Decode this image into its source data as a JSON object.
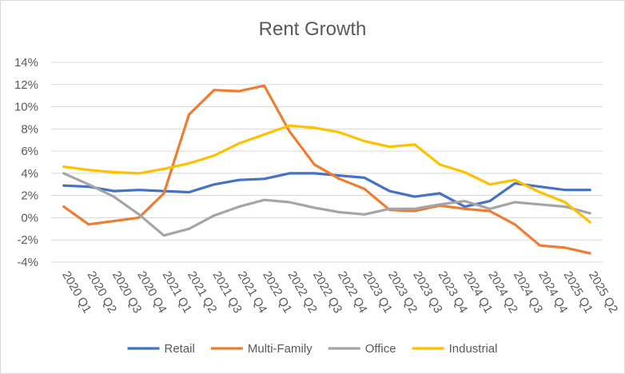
{
  "chart_data": {
    "type": "line",
    "title": "Rent Growth",
    "xlabel": "",
    "ylabel": "",
    "ylim": [
      -0.04,
      0.14
    ],
    "yticks": [
      "14%",
      "12%",
      "10%",
      "8%",
      "6%",
      "4%",
      "2%",
      "0%",
      "-2%",
      "-4%"
    ],
    "categories": [
      "2020 Q1",
      "2020 Q2",
      "2020 Q3",
      "2020 Q4",
      "2021 Q1",
      "2021 Q2",
      "2021 Q3",
      "2021 Q4",
      "2022 Q1",
      "2022 Q2",
      "2022 Q3",
      "2022 Q4",
      "2023 Q1",
      "2023 Q2",
      "2023 Q3",
      "2023 Q4",
      "2024 Q1",
      "2024 Q2",
      "2024 Q3",
      "2024 Q4",
      "2025 Q1",
      "2025 Q2"
    ],
    "grid": true,
    "legend": "bottom",
    "series": [
      {
        "name": "Retail",
        "color": "#4472C4",
        "values": [
          0.029,
          0.028,
          0.024,
          0.025,
          0.024,
          0.023,
          0.03,
          0.034,
          0.035,
          0.04,
          0.04,
          0.038,
          0.036,
          0.024,
          0.019,
          0.022,
          0.01,
          0.015,
          0.031,
          0.028,
          0.025,
          0.025
        ]
      },
      {
        "name": "Multi-Family",
        "color": "#ED7D31",
        "values": [
          0.01,
          -0.006,
          -0.003,
          0.0,
          0.022,
          0.093,
          0.115,
          0.114,
          0.119,
          0.078,
          0.048,
          0.035,
          0.026,
          0.007,
          0.006,
          0.011,
          0.008,
          0.006,
          -0.006,
          -0.025,
          -0.027,
          -0.032
        ]
      },
      {
        "name": "Office",
        "color": "#A5A5A5",
        "values": [
          0.04,
          0.03,
          0.019,
          0.003,
          -0.016,
          -0.01,
          0.002,
          0.01,
          0.016,
          0.014,
          0.009,
          0.005,
          0.003,
          0.008,
          0.008,
          0.012,
          0.015,
          0.008,
          0.014,
          0.012,
          0.01,
          0.004
        ]
      },
      {
        "name": "Industrial",
        "color": "#FFC000",
        "values": [
          0.046,
          0.043,
          0.041,
          0.04,
          0.044,
          0.049,
          0.056,
          0.067,
          0.075,
          0.083,
          0.081,
          0.077,
          0.069,
          0.064,
          0.066,
          0.048,
          0.041,
          0.03,
          0.034,
          0.023,
          0.014,
          -0.004
        ]
      }
    ]
  }
}
